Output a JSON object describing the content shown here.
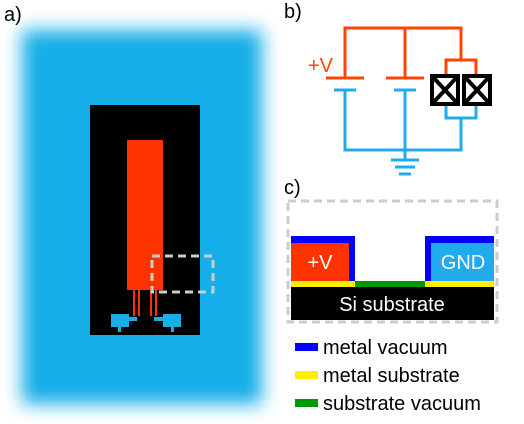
{
  "panels": [
    {
      "label": "a)"
    },
    {
      "label": "b)",
      "supply_label": "+V"
    },
    {
      "label": "c)",
      "electrode_left": "+V",
      "electrode_right": "GND",
      "substrate": "Si substrate"
    }
  ],
  "legend": [
    {
      "label": "metal vacuum",
      "color": "#0000ff"
    },
    {
      "label": "metal substrate",
      "color": "#ffee00"
    },
    {
      "label": "substrate vacuum",
      "color": "#009900"
    }
  ]
}
